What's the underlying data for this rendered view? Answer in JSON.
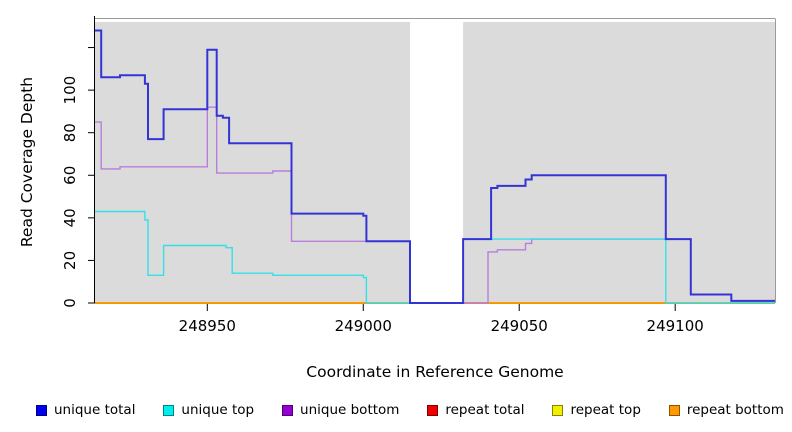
{
  "page": {
    "background": "#ffffff"
  },
  "chart_data": {
    "type": "line",
    "subtype": "step",
    "title": "",
    "xlabel": "Coordinate in Reference Genome",
    "ylabel": "Read Coverage Depth",
    "x_ticks": [
      248950,
      249000,
      249050,
      249100
    ],
    "y_ticks": [
      0,
      20,
      40,
      60,
      80,
      100
    ],
    "y_unlabeled_ticks": [
      120
    ],
    "xlim": [
      248914,
      249132
    ],
    "ylim": [
      0,
      132
    ],
    "grid": "off",
    "legend_position": "bottom",
    "plot_background": "#dbdbdb",
    "gap_region": {
      "from": 249015,
      "to": 249032,
      "fill": "#ffffff"
    },
    "series": [
      {
        "name": "unique total",
        "id": "unique-total",
        "color": "#0000ee",
        "line_color": "#3434d6",
        "steps": [
          [
            248914,
            128
          ],
          [
            248916,
            106
          ],
          [
            248922,
            107
          ],
          [
            248930,
            103
          ],
          [
            248931,
            77
          ],
          [
            248936,
            91
          ],
          [
            248950,
            119
          ],
          [
            248953,
            88
          ],
          [
            248955,
            87
          ],
          [
            248957,
            75
          ],
          [
            248977,
            42
          ],
          [
            249000,
            41
          ],
          [
            249001,
            29
          ],
          [
            249015,
            0
          ],
          [
            249032,
            30
          ],
          [
            249041,
            54
          ],
          [
            249043,
            55
          ],
          [
            249052,
            58
          ],
          [
            249054,
            60
          ],
          [
            249097,
            30
          ],
          [
            249105,
            4
          ],
          [
            249118,
            1
          ]
        ]
      },
      {
        "name": "unique top",
        "id": "unique-top",
        "color": "#00eeee",
        "line_color": "#35e0e9",
        "steps": [
          [
            248914,
            43
          ],
          [
            248930,
            39
          ],
          [
            248931,
            13
          ],
          [
            248936,
            27
          ],
          [
            248956,
            26
          ],
          [
            248958,
            14
          ],
          [
            248971,
            13
          ],
          [
            249000,
            12
          ],
          [
            249001,
            0
          ],
          [
            249032,
            30
          ],
          [
            249097,
            0
          ]
        ]
      },
      {
        "name": "unique bottom",
        "id": "unique-bottom",
        "color": "#9400d3",
        "line_color": "#b97edb",
        "steps": [
          [
            248914,
            85
          ],
          [
            248916,
            63
          ],
          [
            248922,
            64
          ],
          [
            248950,
            92
          ],
          [
            248953,
            61
          ],
          [
            248971,
            62
          ],
          [
            248977,
            29
          ],
          [
            249015,
            0
          ],
          [
            249040,
            24
          ],
          [
            249043,
            25
          ],
          [
            249052,
            28
          ],
          [
            249054,
            30
          ],
          [
            249105,
            4
          ],
          [
            249118,
            1
          ]
        ]
      },
      {
        "name": "repeat total",
        "id": "repeat-total",
        "color": "#ee0000",
        "line_color": "#dd3333",
        "steps": [
          [
            248914,
            0
          ]
        ]
      },
      {
        "name": "repeat top",
        "id": "repeat-top",
        "color": "#f0f000",
        "line_color": "#e8e800",
        "steps": [
          [
            248914,
            0
          ]
        ]
      },
      {
        "name": "repeat bottom",
        "id": "repeat-bottom",
        "color": "#ff9900",
        "line_color": "#ff9900",
        "steps": [
          [
            248914,
            0
          ]
        ]
      }
    ]
  }
}
